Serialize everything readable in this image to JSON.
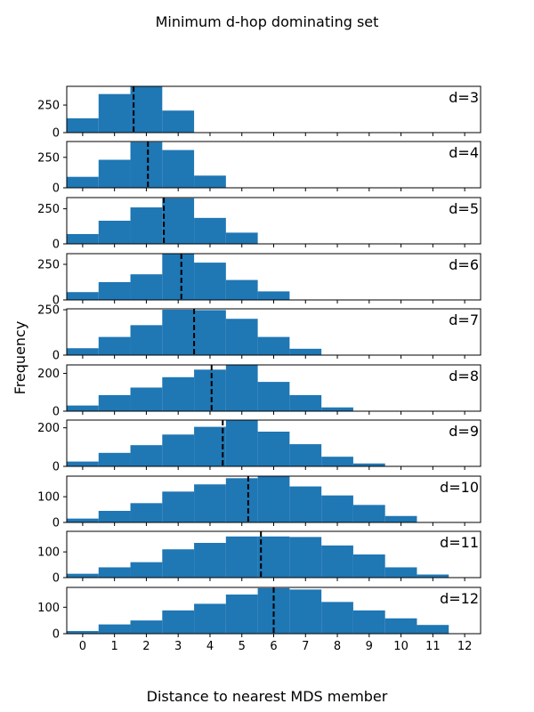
{
  "chart_data": {
    "type": "bar",
    "title": "Minimum d-hop dominating set",
    "xlabel": "Distance to nearest MDS member",
    "ylabel": "Frequency",
    "xlim": [
      -0.5,
      12.5
    ],
    "x_ticks": [
      0,
      1,
      2,
      3,
      4,
      5,
      6,
      7,
      8,
      9,
      10,
      11,
      12
    ],
    "bin_width": 1,
    "bar_color": "#1f77b4",
    "mean_line_color": "#000000",
    "panels": [
      {
        "label": "d=3",
        "ylim": [
          0,
          420
        ],
        "y_ticks": [
          0,
          250
        ],
        "bins": [
          0,
          1,
          2,
          3
        ],
        "values": [
          130,
          350,
          418,
          200
        ],
        "mean": 1.6
      },
      {
        "label": "d=4",
        "ylim": [
          0,
          380
        ],
        "y_ticks": [
          0,
          250
        ],
        "bins": [
          0,
          1,
          2,
          3,
          4
        ],
        "values": [
          90,
          230,
          375,
          310,
          100
        ],
        "mean": 2.05
      },
      {
        "label": "d=5",
        "ylim": [
          0,
          330
        ],
        "y_ticks": [
          0,
          250
        ],
        "bins": [
          0,
          1,
          2,
          3,
          4,
          5
        ],
        "values": [
          70,
          165,
          260,
          325,
          185,
          80
        ],
        "mean": 2.55
      },
      {
        "label": "d=6",
        "ylim": [
          0,
          325
        ],
        "y_ticks": [
          0,
          250
        ],
        "bins": [
          0,
          1,
          2,
          3,
          4,
          5,
          6
        ],
        "values": [
          55,
          125,
          180,
          322,
          262,
          140,
          60
        ],
        "mean": 3.1
      },
      {
        "label": "d=7",
        "ylim": [
          0,
          255
        ],
        "y_ticks": [
          0,
          250
        ],
        "bins": [
          0,
          1,
          2,
          3,
          4,
          5,
          6,
          7
        ],
        "values": [
          38,
          100,
          165,
          250,
          248,
          200,
          100,
          35
        ],
        "mean": 3.5
      },
      {
        "label": "d=8",
        "ylim": [
          0,
          245
        ],
        "y_ticks": [
          0,
          200
        ],
        "bins": [
          0,
          1,
          2,
          3,
          4,
          5,
          6,
          7,
          8
        ],
        "values": [
          30,
          85,
          125,
          180,
          220,
          245,
          155,
          85,
          20
        ],
        "mean": 4.05
      },
      {
        "label": "d=9",
        "ylim": [
          0,
          240
        ],
        "y_ticks": [
          0,
          200
        ],
        "bins": [
          0,
          1,
          2,
          3,
          4,
          5,
          6,
          7,
          8,
          9
        ],
        "values": [
          25,
          70,
          110,
          165,
          205,
          238,
          180,
          115,
          50,
          15
        ],
        "mean": 4.4
      },
      {
        "label": "d=10",
        "ylim": [
          0,
          180
        ],
        "y_ticks": [
          0,
          100
        ],
        "bins": [
          0,
          1,
          2,
          3,
          4,
          5,
          6,
          7,
          8,
          9,
          10
        ],
        "values": [
          15,
          45,
          75,
          120,
          148,
          172,
          180,
          140,
          105,
          68,
          25
        ],
        "mean": 5.2
      },
      {
        "label": "d=11",
        "ylim": [
          0,
          180
        ],
        "y_ticks": [
          0,
          100
        ],
        "bins": [
          0,
          1,
          2,
          3,
          4,
          5,
          6,
          7,
          8,
          9,
          10,
          11
        ],
        "values": [
          15,
          40,
          60,
          110,
          135,
          160,
          160,
          158,
          125,
          90,
          40,
          12
        ],
        "mean": 5.6
      },
      {
        "label": "d=12",
        "ylim": [
          0,
          175
        ],
        "y_ticks": [
          0,
          100
        ],
        "bins": [
          0,
          1,
          2,
          3,
          4,
          5,
          6,
          7,
          8,
          9,
          10,
          11
        ],
        "values": [
          10,
          35,
          50,
          88,
          113,
          148,
          172,
          167,
          120,
          88,
          58,
          33
        ],
        "mean": 6.0
      }
    ]
  }
}
